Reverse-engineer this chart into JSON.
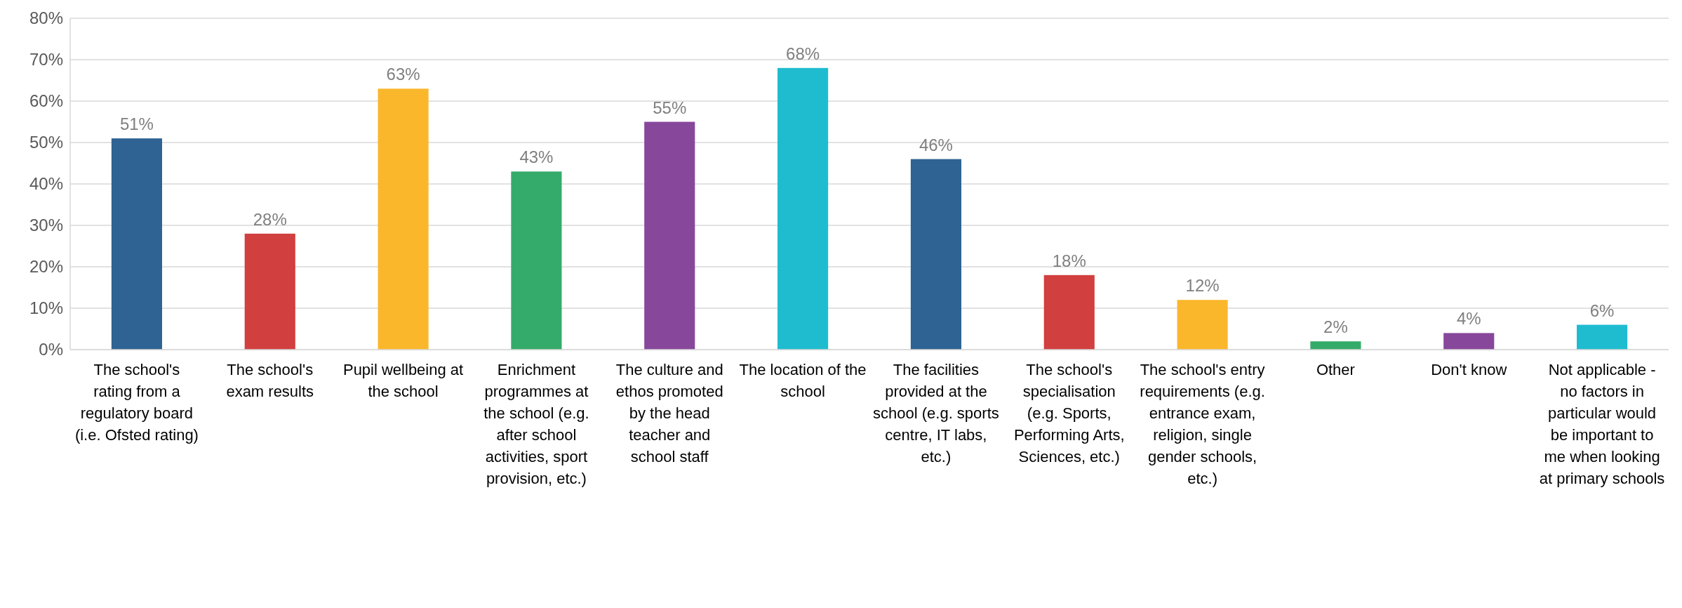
{
  "chart_data": {
    "type": "bar",
    "categories": [
      "The school's rating from a regulatory board (i.e. Ofsted rating)",
      "The school's exam results",
      "Pupil wellbeing at the school",
      "Enrichment programmes at the school (e.g. after school activities, sport provision, etc.)",
      "The culture and ethos promoted by the head teacher and school staff",
      "The location of the school",
      "The facilities provided at the school (e.g. sports centre, IT labs, etc.)",
      "The school's specialisation (e.g. Sports, Performing Arts, Sciences, etc.)",
      "The school's entry requirements (e.g. entrance exam, religion, single gender schools, etc.)",
      "Other",
      "Don't know",
      "Not applicable - no factors in particular would be important to me when looking at primary schools"
    ],
    "values": [
      51,
      28,
      63,
      43,
      55,
      68,
      46,
      18,
      12,
      2,
      4,
      6
    ],
    "value_labels": [
      "51%",
      "28%",
      "63%",
      "43%",
      "55%",
      "68%",
      "46%",
      "18%",
      "12%",
      "2%",
      "4%",
      "6%"
    ],
    "colors": [
      "#2e6393",
      "#d13f3f",
      "#fbb72c",
      "#34ab6a",
      "#87479b",
      "#1fbcd0",
      "#2e6393",
      "#d13f3f",
      "#fbb72c",
      "#34ab6a",
      "#87479b",
      "#1fbcd0"
    ],
    "ylim": [
      0,
      80
    ],
    "yticks": [
      {
        "value": 0,
        "label": "0%"
      },
      {
        "value": 10,
        "label": "10%"
      },
      {
        "value": 20,
        "label": "20%"
      },
      {
        "value": 30,
        "label": "30%"
      },
      {
        "value": 40,
        "label": "40%"
      },
      {
        "value": 50,
        "label": "50%"
      },
      {
        "value": 60,
        "label": "60%"
      },
      {
        "value": 70,
        "label": "70%"
      },
      {
        "value": 80,
        "label": "80%"
      }
    ],
    "grid": "y"
  }
}
